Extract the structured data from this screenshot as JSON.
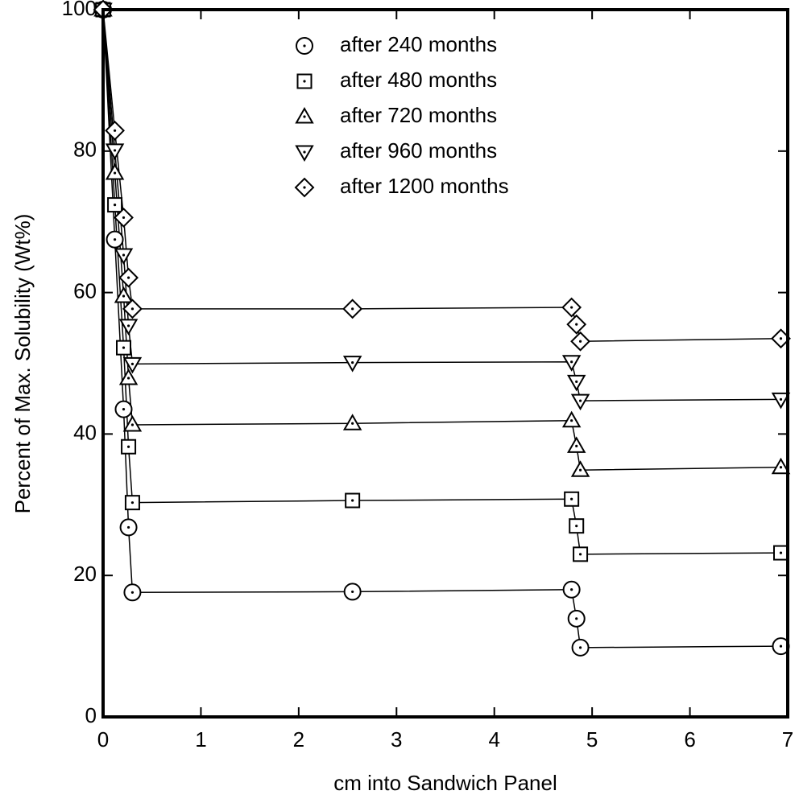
{
  "chart_data": {
    "type": "line",
    "xlabel": "cm into Sandwich Panel",
    "ylabel": "Percent of Max. Solubility (Wt%)",
    "x": [
      0,
      0.12,
      0.21,
      0.26,
      0.3,
      2.55,
      4.79,
      4.84,
      4.88,
      6.93
    ],
    "series": [
      {
        "name": "after 240 months",
        "color": "#000000",
        "marker": "circle",
        "values": [
          100,
          67.5,
          43.5,
          26.8,
          17.6,
          17.7,
          18.0,
          13.9,
          9.8,
          10.0
        ]
      },
      {
        "name": "after 480 months",
        "color": "#000000",
        "marker": "square",
        "values": [
          100,
          72.4,
          52.2,
          38.2,
          30.3,
          30.6,
          30.8,
          27.0,
          23.0,
          23.2
        ]
      },
      {
        "name": "after 720 months",
        "color": "#000000",
        "marker": "triangle-up",
        "values": [
          100,
          76.9,
          59.5,
          47.9,
          41.3,
          41.5,
          41.9,
          38.3,
          34.9,
          35.3
        ]
      },
      {
        "name": "after 960 months",
        "color": "#000000",
        "marker": "triangle-down",
        "values": [
          100,
          80.1,
          65.3,
          55.3,
          49.9,
          50.1,
          50.2,
          47.4,
          44.7,
          44.9
        ]
      },
      {
        "name": "after 1200 months",
        "color": "#000000",
        "marker": "diamond",
        "values": [
          100,
          82.9,
          70.6,
          62.1,
          57.7,
          57.7,
          57.9,
          55.5,
          53.1,
          53.5
        ]
      }
    ],
    "xlim": [
      0,
      7
    ],
    "xticks": [
      0,
      1,
      2,
      3,
      4,
      5,
      6,
      7
    ],
    "ylim": [
      0,
      100
    ],
    "yticks": [
      0,
      20,
      40,
      60,
      80,
      100
    ],
    "grid": false,
    "legend": "top"
  }
}
